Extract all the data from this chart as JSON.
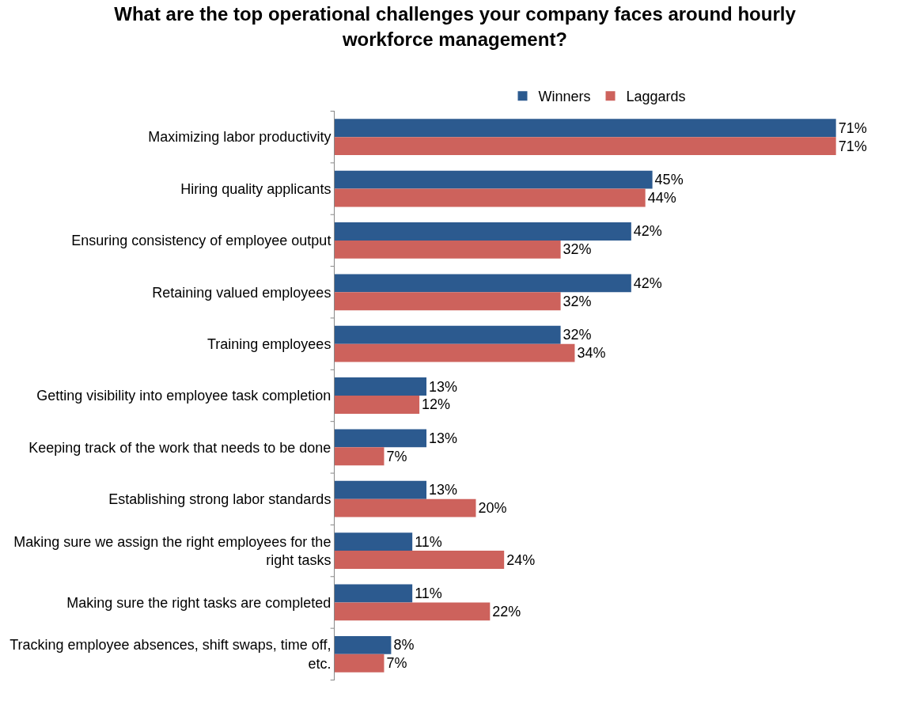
{
  "chart_data": {
    "type": "bar",
    "orientation": "horizontal",
    "title": "What are the top operational challenges your company faces around hourly workforce management?",
    "categories": [
      "Maximizing labor productivity",
      "Hiring quality applicants",
      "Ensuring consistency of employee output",
      "Retaining valued employees",
      "Training employees",
      "Getting visibility into employee task completion",
      "Keeping track of the work that needs to be done",
      "Establishing strong labor standards",
      "Making sure we assign the right employees for the right tasks",
      "Making sure the right tasks are completed",
      "Tracking employee absences, shift swaps, time off, etc."
    ],
    "series": [
      {
        "name": "Winners",
        "color": "#2c5a8f",
        "values": [
          71,
          45,
          42,
          42,
          32,
          13,
          13,
          13,
          11,
          11,
          8
        ],
        "value_labels": [
          "71%",
          "45%",
          "42%",
          "42%",
          "32%",
          "13%",
          "13%",
          "13%",
          "11%",
          "11%",
          "8%"
        ]
      },
      {
        "name": "Laggards",
        "color": "#cd625c",
        "values": [
          71,
          44,
          32,
          32,
          34,
          12,
          7,
          20,
          24,
          22,
          7
        ],
        "value_labels": [
          "71%",
          "44%",
          "32%",
          "32%",
          "34%",
          "12%",
          "7%",
          "20%",
          "24%",
          "22%",
          "7%"
        ]
      }
    ],
    "legend": "top"
  }
}
